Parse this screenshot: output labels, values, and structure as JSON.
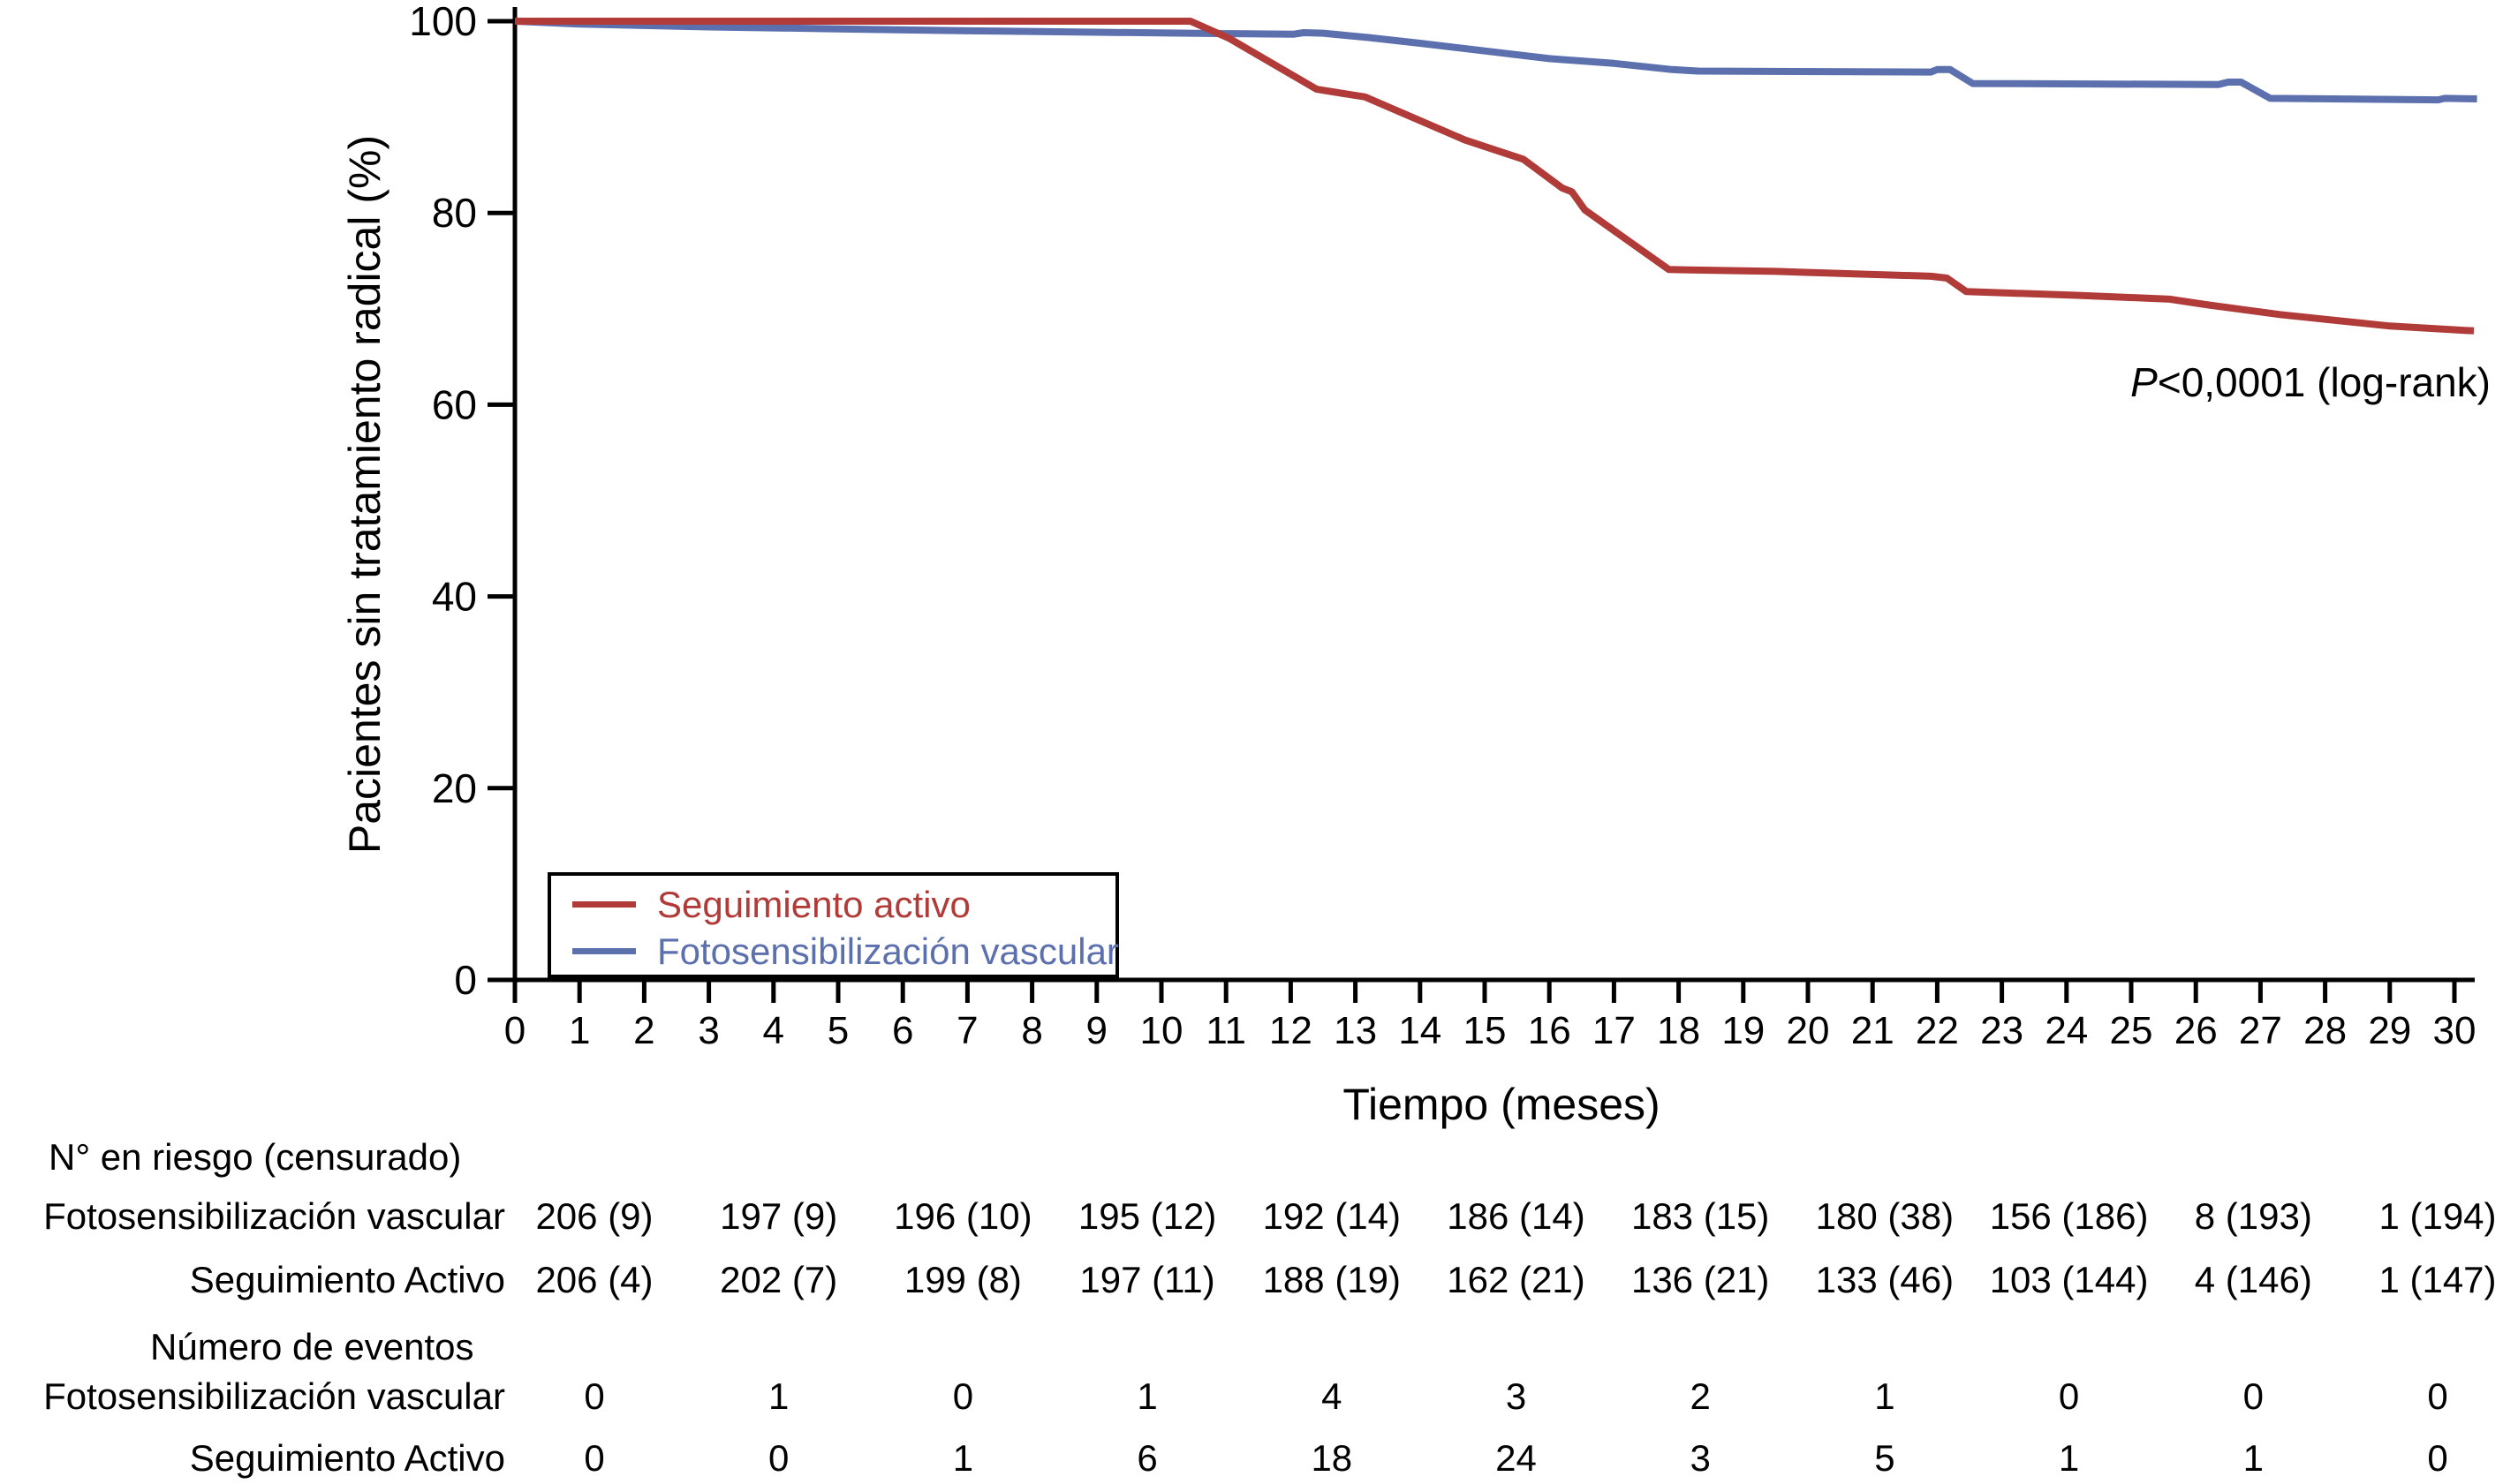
{
  "chart_data": {
    "type": "line",
    "subtype": "kaplan-meier-step",
    "title": "",
    "xlabel": "Tiempo (meses)",
    "ylabel": "Pacientes sin tratamiento radical (%)",
    "xlim": [
      0,
      30
    ],
    "ylim": [
      0,
      100
    ],
    "x_ticks": [
      0,
      1,
      2,
      3,
      4,
      5,
      6,
      7,
      8,
      9,
      10,
      11,
      12,
      13,
      14,
      15,
      16,
      17,
      18,
      19,
      20,
      21,
      22,
      23,
      24,
      25,
      26,
      27,
      28,
      29,
      30
    ],
    "y_ticks": [
      100,
      80,
      60,
      40,
      20,
      0
    ],
    "grid": false,
    "legend_position": "lower-left-inside",
    "series": [
      {
        "name": "Seguimiento activo",
        "color": "#b03b38",
        "points": [
          [
            0,
            100
          ],
          [
            10.45,
            100
          ],
          [
            11.05,
            98.2
          ],
          [
            12.4,
            92.9
          ],
          [
            13.15,
            92.1
          ],
          [
            14.7,
            87.6
          ],
          [
            15.6,
            85.6
          ],
          [
            16.2,
            82.6
          ],
          [
            16.35,
            82.2
          ],
          [
            16.55,
            80.3
          ],
          [
            17.85,
            74.1
          ],
          [
            19.5,
            73.9
          ],
          [
            21.9,
            73.4
          ],
          [
            22.15,
            73.2
          ],
          [
            22.45,
            71.8
          ],
          [
            24.2,
            71.4
          ],
          [
            25.6,
            71.0
          ],
          [
            26.2,
            70.4
          ],
          [
            27.3,
            69.4
          ],
          [
            28.0,
            68.9
          ],
          [
            29.0,
            68.2
          ],
          [
            30.3,
            67.7
          ]
        ]
      },
      {
        "name": "Fotosensibilización vascular",
        "color": "#5c70ae",
        "points": [
          [
            0,
            100
          ],
          [
            1,
            99.7
          ],
          [
            3,
            99.4
          ],
          [
            5,
            99.2
          ],
          [
            7,
            99.0
          ],
          [
            9,
            98.85
          ],
          [
            11,
            98.7
          ],
          [
            12.05,
            98.65
          ],
          [
            12.2,
            98.8
          ],
          [
            12.5,
            98.75
          ],
          [
            13.2,
            98.3
          ],
          [
            14,
            97.7
          ],
          [
            15,
            96.9
          ],
          [
            16,
            96.1
          ],
          [
            17,
            95.6
          ],
          [
            17.9,
            94.95
          ],
          [
            18.3,
            94.8
          ],
          [
            21.9,
            94.7
          ],
          [
            22.0,
            94.95
          ],
          [
            22.2,
            94.95
          ],
          [
            22.55,
            93.5
          ],
          [
            26.35,
            93.4
          ],
          [
            26.5,
            93.65
          ],
          [
            26.7,
            93.65
          ],
          [
            27.15,
            91.95
          ],
          [
            29.75,
            91.8
          ],
          [
            29.85,
            91.95
          ],
          [
            30.35,
            91.9
          ]
        ]
      }
    ]
  },
  "annotation": {
    "p": "P",
    "text": "<0,0001 (log-rank)"
  },
  "risk_table": {
    "risk_header": "N° en riesgo (censurado)",
    "events_header": "Número de eventos",
    "rows": [
      {
        "label": "Fotosensibilización vascular",
        "values": [
          "206 (9)",
          "197 (9)",
          "196 (10)",
          "195 (12)",
          "192 (14)",
          "186 (14)",
          "183 (15)",
          "180 (38)",
          "156 (186)",
          "8 (193)",
          "1 (194)"
        ]
      },
      {
        "label": "Seguimiento Activo",
        "values": [
          "206 (4)",
          "202 (7)",
          "199 (8)",
          "197 (11)",
          "188 (19)",
          "162 (21)",
          "136 (21)",
          "133 (46)",
          "103 (144)",
          "4 (146)",
          "1 (147)"
        ]
      }
    ],
    "event_rows": [
      {
        "label": "Fotosensibilización vascular",
        "values": [
          "0",
          "1",
          "0",
          "1",
          "4",
          "3",
          "2",
          "1",
          "0",
          "0",
          "0"
        ]
      },
      {
        "label": "Seguimiento Activo",
        "values": [
          "0",
          "0",
          "1",
          "6",
          "18",
          "24",
          "3",
          "5",
          "1",
          "1",
          "0"
        ]
      }
    ]
  }
}
